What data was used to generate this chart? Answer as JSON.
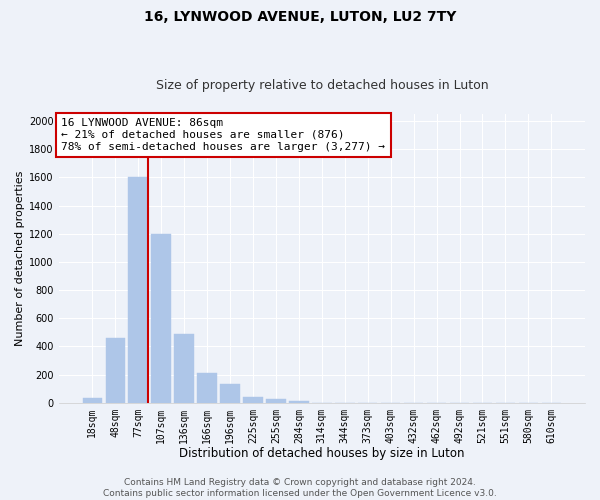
{
  "title": "16, LYNWOOD AVENUE, LUTON, LU2 7TY",
  "subtitle": "Size of property relative to detached houses in Luton",
  "xlabel": "Distribution of detached houses by size in Luton",
  "ylabel": "Number of detached properties",
  "bar_labels": [
    "18sqm",
    "48sqm",
    "77sqm",
    "107sqm",
    "136sqm",
    "166sqm",
    "196sqm",
    "225sqm",
    "255sqm",
    "284sqm",
    "314sqm",
    "344sqm",
    "373sqm",
    "403sqm",
    "432sqm",
    "462sqm",
    "492sqm",
    "521sqm",
    "551sqm",
    "580sqm",
    "610sqm"
  ],
  "bar_heights": [
    30,
    460,
    1600,
    1200,
    490,
    210,
    130,
    40,
    25,
    15,
    0,
    0,
    0,
    0,
    0,
    0,
    0,
    0,
    0,
    0,
    0
  ],
  "bar_color": "#aec6e8",
  "bar_edgecolor": "#aec6e8",
  "vline_color": "#cc0000",
  "annotation_text": "16 LYNWOOD AVENUE: 86sqm\n← 21% of detached houses are smaller (876)\n78% of semi-detached houses are larger (3,277) →",
  "annotation_box_facecolor": "#ffffff",
  "annotation_box_edgecolor": "#cc0000",
  "ylim": [
    0,
    2050
  ],
  "yticks": [
    0,
    200,
    400,
    600,
    800,
    1000,
    1200,
    1400,
    1600,
    1800,
    2000
  ],
  "background_color": "#eef2f9",
  "grid_color": "#ffffff",
  "footer_text": "Contains HM Land Registry data © Crown copyright and database right 2024.\nContains public sector information licensed under the Open Government Licence v3.0.",
  "title_fontsize": 10,
  "subtitle_fontsize": 9,
  "xlabel_fontsize": 8.5,
  "ylabel_fontsize": 8,
  "tick_fontsize": 7,
  "annotation_fontsize": 8,
  "footer_fontsize": 6.5
}
